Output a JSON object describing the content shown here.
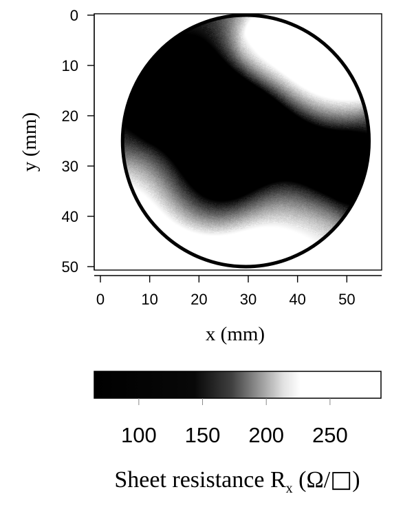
{
  "chart_data": {
    "type": "heatmap",
    "title": "",
    "xlabel": "x (mm)",
    "ylabel": "y (mm)",
    "x_ticks": [
      0,
      10,
      20,
      30,
      40,
      50
    ],
    "y_ticks": [
      0,
      10,
      20,
      30,
      40,
      50
    ],
    "xlim": [
      0,
      56
    ],
    "ylim": [
      0,
      51
    ],
    "y_axis_inverted": true,
    "grid": false,
    "colormap": [
      "#000000",
      "#ffffff"
    ],
    "colorbar": {
      "range": [
        65,
        290
      ],
      "ticks": [
        100,
        150,
        200,
        250
      ],
      "title_parts": [
        "Sheet resistance R",
        "x",
        " (Ω/",
        "□",
        ")"
      ]
    },
    "sample_region": {
      "shape": "disc",
      "center_mm": [
        29.5,
        25
      ],
      "radius_mm": [
        25,
        25
      ]
    },
    "resistance_features": [
      {
        "center_mm": [
          20,
          23
        ],
        "radius_mm": 12,
        "value": 70
      },
      {
        "center_mm": [
          29,
          28
        ],
        "radius_mm": 7,
        "value": 78
      },
      {
        "center_mm": [
          23,
          34
        ],
        "radius_mm": 6,
        "value": 82
      },
      {
        "center_mm": [
          46,
          29
        ],
        "radius_mm": 9,
        "value": 95
      },
      {
        "center_mm": [
          10,
          36
        ],
        "radius_mm": 8,
        "value": 280
      },
      {
        "center_mm": [
          22,
          46
        ],
        "radius_mm": 8,
        "value": 280
      },
      {
        "center_mm": [
          33,
          44
        ],
        "radius_mm": 6,
        "value": 270
      },
      {
        "center_mm": [
          44,
          7
        ],
        "radius_mm": 8,
        "value": 280
      },
      {
        "center_mm": [
          48,
          13
        ],
        "radius_mm": 6,
        "value": 260
      },
      {
        "center_mm": [
          33,
          5
        ],
        "radius_mm": 5,
        "value": 250
      },
      {
        "center_mm": [
          44,
          43
        ],
        "radius_mm": 5,
        "value": 240
      },
      {
        "center_mm": [
          36,
          37
        ],
        "radius_mm": 5,
        "value": 220
      }
    ],
    "base_value": 170
  }
}
